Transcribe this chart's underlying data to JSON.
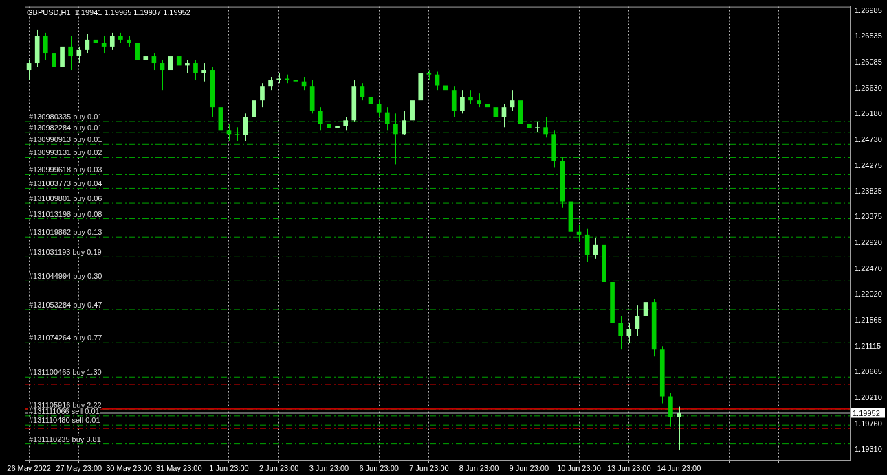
{
  "chart_data": {
    "type": "candlestick",
    "title": "GBPUSD,H1  1.19941 1.19965 1.19937 1.19952",
    "categories": [
      "26 May 2022",
      null,
      null,
      null,
      null,
      null,
      "27 May 23:00",
      null,
      null,
      null,
      null,
      null,
      "30 May 23:00",
      null,
      null,
      null,
      null,
      null,
      "31 May 23:00",
      null,
      null,
      null,
      null,
      null,
      "1 Jun 23:00",
      null,
      null,
      null,
      null,
      null,
      "2 Jun 23:00",
      null,
      null,
      null,
      null,
      null,
      "3 Jun 23:00",
      null,
      null,
      null,
      null,
      null,
      "6 Jun 23:00",
      null,
      null,
      null,
      null,
      null,
      "7 Jun 23:00",
      null,
      null,
      null,
      null,
      null,
      "8 Jun 23:00",
      null,
      null,
      null,
      null,
      null,
      "9 Jun 23:00",
      null,
      null,
      null,
      null,
      null,
      "10 Jun 23:00",
      null,
      null,
      null,
      null,
      null,
      "13 Jun 23:00",
      null,
      null,
      null,
      null,
      null,
      "14 Jun 23:00",
      null,
      null,
      null,
      null,
      null,
      null,
      null,
      null,
      null,
      null,
      null,
      null,
      null,
      null,
      null,
      null,
      null,
      null,
      null,
      null
    ],
    "colors": [
      "#9cff9c",
      "#9cff9c",
      "#00d000",
      "#00d000",
      "#9cff9c",
      "#00d000",
      "#9cff9c",
      "#9cff9c",
      "#00d000",
      "#00d000",
      "#9cff9c",
      "#00d000",
      "#00d000",
      "#00d000",
      "#9cff9c",
      "#00d000",
      "#00d000",
      "#9cff9c",
      "#00d000",
      "#9cff9c",
      "#00d000",
      "#9cff9c",
      "#00d000",
      "#00d000",
      "#00d000",
      "#00d000",
      "#9cff9c",
      "#9cff9c",
      "#9cff9c",
      "#9cff9c",
      "#9cff9c",
      "#00d000",
      "#00d000",
      "#00d000",
      "#00d000",
      "#00d000",
      "#00d000",
      "#9cff9c",
      "#9cff9c",
      "#9cff9c",
      "#00d000",
      "#00d000",
      "#00d000",
      "#00d000",
      "#00d000",
      "#9cff9c",
      "#9cff9c",
      "#9cff9c",
      "#00d000",
      "#00d000",
      "#00d000",
      "#00d000",
      "#9cff9c",
      "#00d000",
      "#00d000",
      "#00d000",
      "#00d000",
      "#9cff9c",
      "#9cff9c",
      "#00d000",
      "#00d000",
      "#9cff9c",
      "#00d000",
      "#00d000",
      "#00d000",
      "#00d000",
      "#00d000",
      "#00d000",
      "#9cff9c",
      "#00d000",
      "#00d000",
      "#00d000",
      "#9cff9c",
      "#9cff9c",
      "#9cff9c",
      "#00d000",
      "#00d000",
      "#00d000",
      "#9cff9c",
      null,
      null,
      null,
      null,
      null,
      null,
      null,
      null,
      null,
      null,
      null,
      null,
      null,
      null,
      null,
      null,
      null,
      null,
      null,
      null
    ],
    "ohlc": [
      [
        1.2595,
        1.2613,
        1.2577,
        1.2607
      ],
      [
        1.2607,
        1.2666,
        1.2601,
        1.2654
      ],
      [
        1.2654,
        1.266,
        1.2613,
        1.2625
      ],
      [
        1.2625,
        1.2636,
        1.2589,
        1.2601
      ],
      [
        1.2601,
        1.2642,
        1.2595,
        1.2636
      ],
      [
        1.2636,
        1.2654,
        1.2595,
        1.2619
      ],
      [
        1.2619,
        1.2636,
        1.2607,
        1.263
      ],
      [
        1.263,
        1.2658,
        1.2625,
        1.2648
      ],
      [
        1.2648,
        1.2654,
        1.2619,
        1.2642
      ],
      [
        1.2642,
        1.2654,
        1.2625,
        1.2636
      ],
      [
        1.2636,
        1.266,
        1.263,
        1.2654
      ],
      [
        1.2654,
        1.266,
        1.2642,
        1.2648
      ],
      [
        1.2648,
        1.2654,
        1.2636,
        1.2642
      ],
      [
        1.2642,
        1.2648,
        1.2601,
        1.2613
      ],
      [
        1.2613,
        1.263,
        1.2599,
        1.2619
      ],
      [
        1.2619,
        1.2625,
        1.2595,
        1.2607
      ],
      [
        1.2607,
        1.2613,
        1.256,
        1.2595
      ],
      [
        1.2595,
        1.263,
        1.2589,
        1.2619
      ],
      [
        1.2619,
        1.2622,
        1.2595,
        1.2603
      ],
      [
        1.2603,
        1.2613,
        1.2589,
        1.2607
      ],
      [
        1.2607,
        1.2613,
        1.2577,
        1.2589
      ],
      [
        1.2589,
        1.2607,
        1.2575,
        1.2595
      ],
      [
        1.2595,
        1.2601,
        1.2513,
        1.253
      ],
      [
        1.253,
        1.2536,
        1.246,
        1.2489
      ],
      [
        1.2489,
        1.2501,
        1.2471,
        1.2483
      ],
      [
        1.2483,
        1.2495,
        1.2471,
        1.2481
      ],
      [
        1.2481,
        1.2519,
        1.2471,
        1.2513
      ],
      [
        1.2513,
        1.2548,
        1.2507,
        1.2542
      ],
      [
        1.2542,
        1.2572,
        1.253,
        1.2566
      ],
      [
        1.2566,
        1.2583,
        1.256,
        1.2577
      ],
      [
        1.2577,
        1.2589,
        1.2572,
        1.258
      ],
      [
        1.258,
        1.2587,
        1.2572,
        1.2577
      ],
      [
        1.2577,
        1.2585,
        1.2568,
        1.2575
      ],
      [
        1.2575,
        1.2583,
        1.256,
        1.2566
      ],
      [
        1.2566,
        1.2577,
        1.2519,
        1.2524
      ],
      [
        1.2524,
        1.253,
        1.2489,
        1.2501
      ],
      [
        1.2501,
        1.2507,
        1.2483,
        1.2493
      ],
      [
        1.2493,
        1.2504,
        1.2483,
        1.2497
      ],
      [
        1.2497,
        1.2513,
        1.2489,
        1.2507
      ],
      [
        1.2507,
        1.2577,
        1.2504,
        1.2566
      ],
      [
        1.2566,
        1.2572,
        1.2542,
        1.2548
      ],
      [
        1.2548,
        1.2554,
        1.2524,
        1.2536
      ],
      [
        1.2536,
        1.2542,
        1.2513,
        1.2521
      ],
      [
        1.2521,
        1.253,
        1.2489,
        1.2501
      ],
      [
        1.2501,
        1.2519,
        1.243,
        1.2483
      ],
      [
        1.2483,
        1.2524,
        1.2481,
        1.2507
      ],
      [
        1.2507,
        1.2554,
        1.2489,
        1.2542
      ],
      [
        1.2542,
        1.2599,
        1.2536,
        1.2589
      ],
      [
        1.2589,
        1.2595,
        1.2577,
        1.2587
      ],
      [
        1.2587,
        1.2592,
        1.256,
        1.2568
      ],
      [
        1.2568,
        1.258,
        1.2548,
        1.256
      ],
      [
        1.256,
        1.2566,
        1.2513,
        1.2524
      ],
      [
        1.2524,
        1.256,
        1.2519,
        1.2548
      ],
      [
        1.2548,
        1.256,
        1.2536,
        1.2542
      ],
      [
        1.2542,
        1.2554,
        1.253,
        1.2536
      ],
      [
        1.2536,
        1.2544,
        1.2519,
        1.253
      ],
      [
        1.253,
        1.2542,
        1.2489,
        1.2513
      ],
      [
        1.2513,
        1.2536,
        1.2495,
        1.253
      ],
      [
        1.253,
        1.256,
        1.2524,
        1.2542
      ],
      [
        1.2542,
        1.2548,
        1.2489,
        1.2501
      ],
      [
        1.2501,
        1.2507,
        1.2483,
        1.2493
      ],
      [
        1.2493,
        1.2504,
        1.2486,
        1.2495
      ],
      [
        1.2495,
        1.2513,
        1.2477,
        1.2483
      ],
      [
        1.2483,
        1.2489,
        1.2424,
        1.2436
      ],
      [
        1.2436,
        1.2442,
        1.2354,
        1.2365
      ],
      [
        1.2365,
        1.2371,
        1.2301,
        1.2312
      ],
      [
        1.2312,
        1.2324,
        1.2295,
        1.2307
      ],
      [
        1.2307,
        1.2318,
        1.2259,
        1.2271
      ],
      [
        1.2271,
        1.2301,
        1.2265,
        1.2289
      ],
      [
        1.2289,
        1.2295,
        1.2212,
        1.2224
      ],
      [
        1.2224,
        1.2236,
        1.2124,
        1.2153
      ],
      [
        1.2153,
        1.2165,
        1.2106,
        1.213
      ],
      [
        1.213,
        1.2153,
        1.2118,
        1.2142
      ],
      [
        1.2142,
        1.2183,
        1.213,
        1.2165
      ],
      [
        1.2165,
        1.2206,
        1.2153,
        1.2189
      ],
      [
        1.2189,
        1.2195,
        1.2094,
        1.2106
      ],
      [
        1.2106,
        1.2112,
        1.2012,
        1.2024
      ],
      [
        1.2024,
        1.203,
        1.1971,
        1.1988
      ],
      [
        1.1988,
        1.2006,
        1.193,
        1.1995
      ],
      null,
      null,
      null,
      null,
      null,
      null,
      null,
      null,
      null,
      null,
      null,
      null,
      null,
      null,
      null,
      null,
      null,
      null,
      null,
      null
    ],
    "ylim": [
      1.1912,
      1.2706
    ],
    "yticks": [
      {
        "value": 1.26985,
        "label": "1.26985"
      },
      {
        "value": 1.26535,
        "label": "1.26535"
      },
      {
        "value": 1.26085,
        "label": "1.26085"
      },
      {
        "value": 1.2563,
        "label": "1.25630"
      },
      {
        "value": 1.2518,
        "label": "1.25180"
      },
      {
        "value": 1.2473,
        "label": "1.24730"
      },
      {
        "value": 1.24275,
        "label": "1.24275"
      },
      {
        "value": 1.23825,
        "label": "1.23825"
      },
      {
        "value": 1.23375,
        "label": "1.23375"
      },
      {
        "value": 1.2292,
        "label": "1.22920"
      },
      {
        "value": 1.2247,
        "label": "1.22470"
      },
      {
        "value": 1.2202,
        "label": "1.22020"
      },
      {
        "value": 1.21565,
        "label": "1.21565"
      },
      {
        "value": 1.21115,
        "label": "1.21115"
      },
      {
        "value": 1.20665,
        "label": "1.20665"
      },
      {
        "value": 1.2021,
        "label": "1.20210"
      },
      {
        "value": 1.1976,
        "label": "1.19760"
      },
      {
        "value": 1.1931,
        "label": "1.19310"
      }
    ],
    "grid": "x",
    "ref_lines": [
      {
        "axis": "y",
        "value": 1.2505,
        "label": "#130980335 buy 0.01",
        "color": "#00a800",
        "line_style": "dashed"
      },
      {
        "axis": "y",
        "value": 1.2486,
        "label": "#130982284 buy 0.01",
        "color": "#00a800",
        "line_style": "dashed"
      },
      {
        "axis": "y",
        "value": 1.2465,
        "label": "#130990913 buy 0.01",
        "color": "#00a800",
        "line_style": "dashed"
      },
      {
        "axis": "y",
        "value": 1.2442,
        "label": "#130993131 buy 0.02",
        "color": "#00a800",
        "line_style": "dashed"
      },
      {
        "axis": "y",
        "value": 1.2412,
        "label": "#130999618 buy 0.03",
        "color": "#00a800",
        "line_style": "dashed"
      },
      {
        "axis": "y",
        "value": 1.2388,
        "label": "#131003773 buy 0.04",
        "color": "#00a800",
        "line_style": "dashed"
      },
      {
        "axis": "y",
        "value": 1.2362,
        "label": "#131009801 buy 0.06",
        "color": "#00a800",
        "line_style": "dashed"
      },
      {
        "axis": "y",
        "value": 1.2335,
        "label": "#131013198 buy 0.08",
        "color": "#00a800",
        "line_style": "dashed"
      },
      {
        "axis": "y",
        "value": 1.2303,
        "label": "#131019862 buy 0.13",
        "color": "#00a800",
        "line_style": "dashed"
      },
      {
        "axis": "y",
        "value": 1.2268,
        "label": "#131031193 buy 0.19",
        "color": "#00a800",
        "line_style": "dashed"
      },
      {
        "axis": "y",
        "value": 1.2226,
        "label": "#131044994 buy 0.30",
        "color": "#00a800",
        "line_style": "dashed"
      },
      {
        "axis": "y",
        "value": 1.2176,
        "label": "#131053284 buy 0.47",
        "color": "#00a800",
        "line_style": "dashed"
      },
      {
        "axis": "y",
        "value": 1.2118,
        "label": "#131074264 buy 0.77",
        "color": "#00a800",
        "line_style": "dashed"
      },
      {
        "axis": "y",
        "value": 1.2058,
        "label": "#131100465 buy 1.30",
        "color": "#00a800",
        "line_style": "dashed"
      },
      {
        "axis": "y",
        "value": 1.2045,
        "color": "#d00000",
        "line_style": "dashed"
      },
      {
        "axis": "y",
        "value": 1.2001,
        "label": "#131105916 buy 2.22",
        "color": "#00a800",
        "line_style": "dashed"
      },
      {
        "axis": "y",
        "value": 1.2002,
        "color": "#c00000",
        "line_style": "solid"
      },
      {
        "axis": "y",
        "value": 1.19952,
        "label": "1.19952",
        "color": "#c0c0c0",
        "line_style": "solid"
      },
      {
        "axis": "y",
        "value": 1.199,
        "label": "#131111066 sell 0.01",
        "color": "#00a800",
        "line_style": "dashed"
      },
      {
        "axis": "y",
        "value": 1.1974,
        "label": "#131110480 sell 0.01",
        "color": "#00a800",
        "line_style": "dashed"
      },
      {
        "axis": "y",
        "value": 1.1968,
        "color": "#d00000",
        "line_style": "dashed"
      },
      {
        "axis": "y",
        "value": 1.1941,
        "label": "#131110235 buy 3.81",
        "color": "#00a800",
        "line_style": "dashed"
      }
    ]
  }
}
